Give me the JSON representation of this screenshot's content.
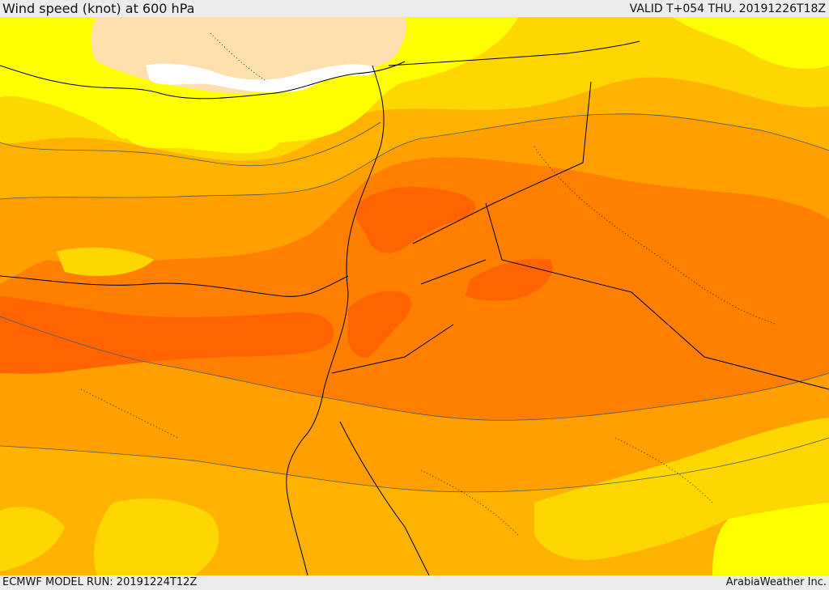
{
  "header": {
    "title": "Wind speed (knot) at 600 hPa",
    "valid_time": "VALID T+054 THU. 20191226T18Z"
  },
  "footer": {
    "model_run": "ECMWF MODEL RUN: 20191224T12Z",
    "credit": "ArabiaWeather Inc."
  },
  "map": {
    "region": "Eastern Mediterranean and Middle East",
    "variable": "wind speed at 600 hPa",
    "colors": {
      "calm": "#ffffff",
      "very_low": "#fde0ae",
      "low": "#ffff00",
      "medium_low": "#ffd700",
      "medium": "#ffb300",
      "medium_high": "#ff9f00",
      "high": "#ff7f00",
      "very_high": "#ff6400",
      "borders": "#000000",
      "contours": "#555555"
    }
  }
}
